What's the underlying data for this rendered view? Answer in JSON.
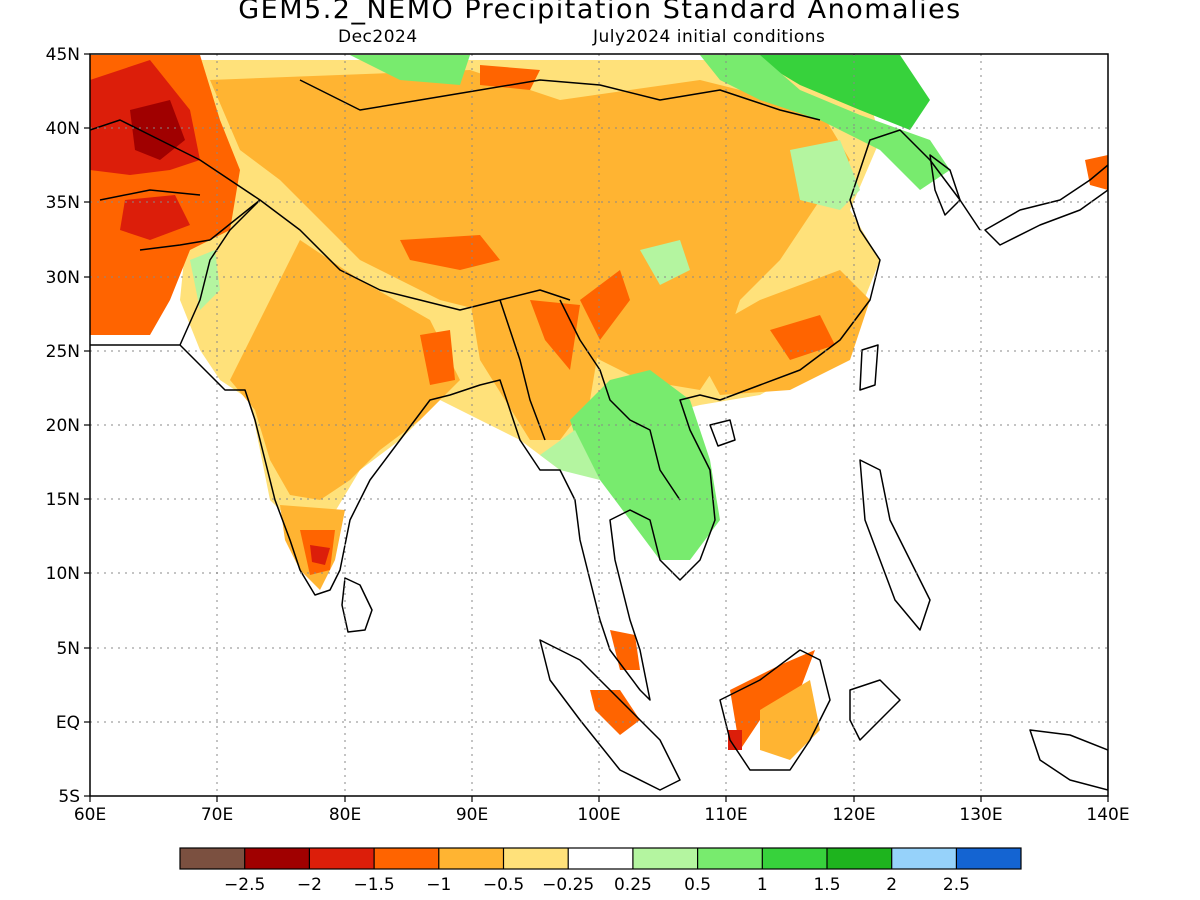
{
  "title": "GEM5.2_NEMO Precipitation Standard Anomalies",
  "subtitle_left": "Dec2024",
  "subtitle_right": "July2024 initial conditions",
  "map": {
    "lon_range": [
      60,
      140
    ],
    "lat_range": [
      -5,
      45
    ],
    "lon_ticks": [
      "60E",
      "70E",
      "80E",
      "90E",
      "100E",
      "110E",
      "120E",
      "130E",
      "140E"
    ],
    "lat_ticks": [
      "45N",
      "40N",
      "35N",
      "30N",
      "25N",
      "20N",
      "15N",
      "10N",
      "5N",
      "EQ",
      "5S"
    ],
    "grid": true
  },
  "colorbar": {
    "colors": [
      "#7b5040",
      "#a00000",
      "#dc1e0a",
      "#ff6400",
      "#ffb432",
      "#ffe17a",
      "#ffffff",
      "#b4f5a0",
      "#78eb6e",
      "#37d23c",
      "#1eb41e",
      "#96d2fa",
      "#1464d2"
    ],
    "labels": [
      "−2.5",
      "−2",
      "−1.5",
      "−1",
      "−0.5",
      "−0.25",
      "0.25",
      "0.5",
      "1",
      "1.5",
      "2",
      "2.5"
    ]
  },
  "palette": {
    "drier_strong": "#dc1e0a",
    "drier": "#ff6400",
    "dry": "#ffb432",
    "slightly_dry": "#ffe17a",
    "slightly_wet": "#b4f5a0",
    "wet": "#78eb6e",
    "wetter": "#37d23c"
  }
}
